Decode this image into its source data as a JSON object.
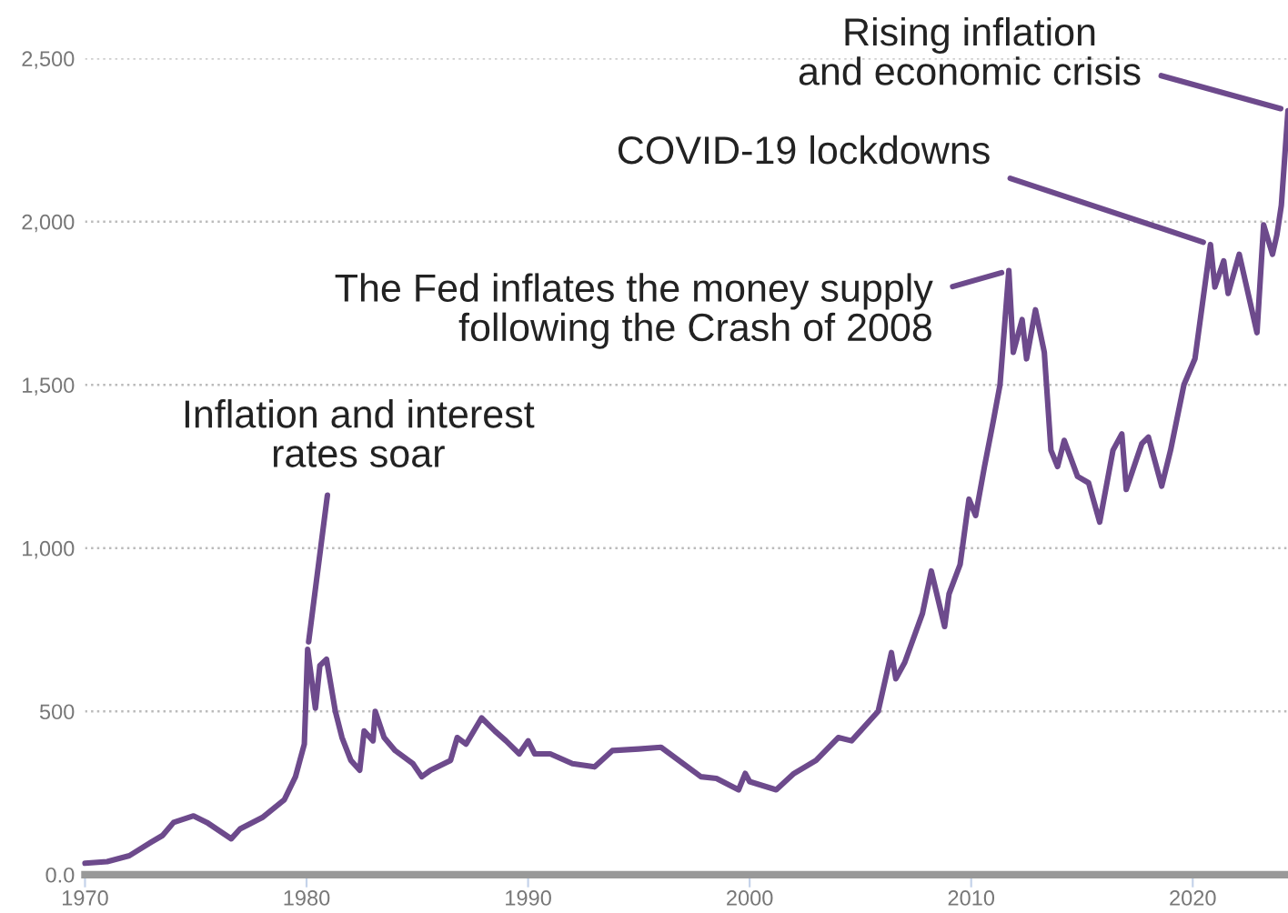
{
  "chart_data": {
    "type": "line",
    "x": [
      1970,
      1971,
      1972,
      1973,
      1973.5,
      1974,
      1974.9,
      1975.5,
      1976.6,
      1977,
      1978,
      1979,
      1979.5,
      1979.9,
      1980.05,
      1980.4,
      1980.6,
      1980.9,
      1981.3,
      1981.6,
      1982,
      1982.4,
      1982.6,
      1983,
      1983.1,
      1983.5,
      1984,
      1984.8,
      1985.2,
      1985.6,
      1986.5,
      1986.8,
      1987.2,
      1987.9,
      1988.5,
      1989,
      1989.6,
      1990,
      1990.3,
      1991,
      1992,
      1993,
      1993.8,
      1995,
      1996,
      1997,
      1997.8,
      1998.5,
      1999.5,
      1999.8,
      2000,
      2001.2,
      2002,
      2003,
      2004,
      2004.6,
      2005,
      2005.8,
      2006.4,
      2006.6,
      2007,
      2007.8,
      2008.2,
      2008.8,
      2009,
      2009.5,
      2009.9,
      2010.2,
      2010.6,
      2011,
      2011.3,
      2011.7,
      2011.9,
      2012.3,
      2012.5,
      2012.9,
      2013.3,
      2013.6,
      2013.9,
      2014.2,
      2014.8,
      2015.3,
      2015.8,
      2016.4,
      2016.8,
      2017,
      2017.7,
      2018,
      2018.6,
      2019,
      2019.6,
      2020.1,
      2020.8,
      2021,
      2021.4,
      2021.6,
      2022.1,
      2022.9,
      2023.2,
      2023.6,
      2023.8,
      2024,
      2024.3
    ],
    "series": [
      {
        "color": "#6d4a8c",
        "values": [
          35,
          40,
          58,
          100,
          120,
          160,
          180,
          160,
          110,
          140,
          175,
          230,
          300,
          400,
          690,
          510,
          640,
          660,
          500,
          420,
          350,
          320,
          440,
          410,
          500,
          420,
          380,
          340,
          300,
          320,
          350,
          420,
          400,
          480,
          440,
          410,
          370,
          410,
          370,
          370,
          340,
          330,
          380,
          385,
          390,
          340,
          300,
          295,
          260,
          310,
          285,
          260,
          310,
          350,
          420,
          410,
          440,
          500,
          680,
          600,
          650,
          800,
          930,
          760,
          860,
          950,
          1150,
          1100,
          1250,
          1390,
          1500,
          1850,
          1600,
          1700,
          1580,
          1730,
          1600,
          1300,
          1250,
          1330,
          1220,
          1200,
          1080,
          1300,
          1350,
          1180,
          1320,
          1340,
          1190,
          1300,
          1500,
          1580,
          1930,
          1800,
          1880,
          1780,
          1900,
          1660,
          1990,
          1900,
          1960,
          2050,
          2340
        ]
      }
    ],
    "xlim": [
      1970,
      2024.3
    ],
    "xticks": [
      1970,
      1980,
      1990,
      2000,
      2010,
      2020
    ],
    "ylim": [
      0,
      2500
    ],
    "yticks": [
      {
        "value": 0,
        "label": "0.0"
      },
      {
        "value": 500,
        "label": "500"
      },
      {
        "value": 1000,
        "label": "1,000"
      },
      {
        "value": 1500,
        "label": "1,500"
      },
      {
        "value": 2000,
        "label": "2,000"
      },
      {
        "value": 2500,
        "label": "2,500"
      }
    ],
    "grid": "y",
    "legend": false,
    "annotations": [
      {
        "text": "Inflation and interest\nrates soar",
        "x": 1980.05,
        "y": 690
      },
      {
        "text": "The Fed inflates the money supply\nfollowing the Crash of 2008",
        "x": 2011.7,
        "y": 1850
      },
      {
        "text": "COVID-19 lockdowns",
        "x": 2020.8,
        "y": 1930
      },
      {
        "text": "Rising inflation\nand economic crisis",
        "x": 2024.3,
        "y": 2340
      }
    ]
  }
}
